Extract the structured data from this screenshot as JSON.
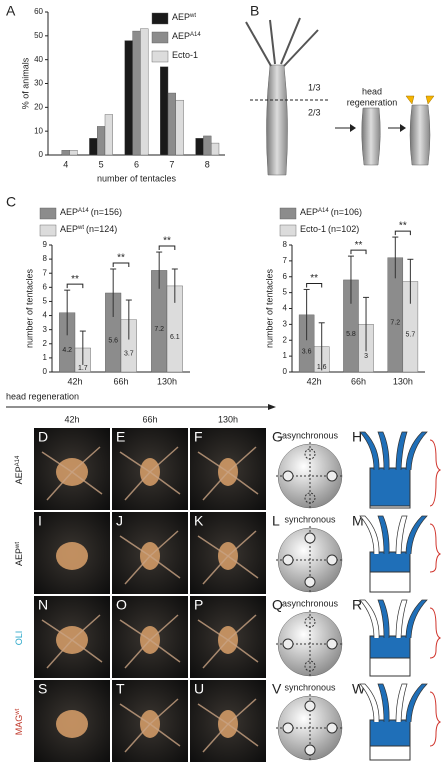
{
  "panel_labels": [
    "A",
    "B",
    "C"
  ],
  "chart_data": [
    {
      "type": "bar",
      "ylabel": "% of animals",
      "xlabel": "number of tentacles",
      "categories": [
        "4",
        "5",
        "6",
        "7",
        "8"
      ],
      "ylim": [
        0,
        60
      ],
      "yticks": [
        0,
        10,
        20,
        30,
        40,
        50,
        60
      ],
      "series": [
        {
          "name": "AEP",
          "name_sup": "wt",
          "color": "#1a1a1a",
          "values": [
            0,
            7,
            48,
            37,
            7
          ]
        },
        {
          "name": "AEP",
          "name_sup": "A14",
          "color": "#8c8c8c",
          "values": [
            2,
            12,
            52,
            26,
            8
          ]
        },
        {
          "name": "Ecto-1",
          "color": "#dcdcdc",
          "values": [
            2,
            17,
            53,
            23,
            5
          ]
        }
      ]
    },
    {
      "type": "bar",
      "ylabel": "number of tentacles",
      "categories": [
        "42h",
        "66h",
        "130h"
      ],
      "ylim": [
        0,
        9
      ],
      "yticks": [
        0,
        1,
        2,
        3,
        4,
        5,
        6,
        7,
        8,
        9
      ],
      "significance": [
        "**",
        "**",
        "**"
      ],
      "series": [
        {
          "name": "AEP",
          "name_sup": "A14",
          "note": "(n=156)",
          "color": "#8c8c8c",
          "values": [
            4.2,
            5.6,
            7.2
          ],
          "errors": [
            1.6,
            1.7,
            1.3
          ]
        },
        {
          "name": "AEP",
          "name_sup": "wt",
          "note": "(n=124)",
          "color": "#dcdcdc",
          "values": [
            1.7,
            3.7,
            6.1
          ],
          "errors": [
            1.2,
            1.4,
            1.2
          ]
        }
      ]
    },
    {
      "type": "bar",
      "ylabel": "number of tentacles",
      "categories": [
        "42h",
        "66h",
        "130h"
      ],
      "ylim": [
        0,
        8
      ],
      "yticks": [
        0,
        1,
        2,
        3,
        4,
        5,
        6,
        7,
        8
      ],
      "significance": [
        "**",
        "**",
        "**"
      ],
      "series": [
        {
          "name": "AEP",
          "name_sup": "A14",
          "note": "(n=106)",
          "color": "#8c8c8c",
          "values": [
            3.6,
            5.8,
            7.2
          ],
          "errors": [
            1.6,
            1.5,
            1.3
          ]
        },
        {
          "name": "Ecto-1",
          "note": "(n=102)",
          "color": "#dcdcdc",
          "values": [
            1.6,
            3.0,
            5.7
          ],
          "errors": [
            1.5,
            1.7,
            1.4
          ]
        }
      ]
    }
  ],
  "diagram_b": {
    "fractions": [
      "1/3",
      "2/3"
    ],
    "caption": [
      "head",
      "regeneration"
    ]
  },
  "timeline": {
    "title": "head regeneration",
    "times": [
      "42h",
      "66h",
      "130h"
    ]
  },
  "rows": [
    {
      "label": "AEP",
      "label_sup": "A14",
      "color": "#222",
      "panels": [
        "D",
        "E",
        "F",
        "G",
        "H"
      ],
      "pattern": "asynchronous"
    },
    {
      "label": "AEP",
      "label_sup": "wt",
      "color": "#222",
      "panels": [
        "I",
        "J",
        "K",
        "L",
        "M"
      ],
      "pattern": "synchronous"
    },
    {
      "label": "OLI",
      "color": "#2aa7c9",
      "panels": [
        "N",
        "O",
        "P",
        "Q",
        "R"
      ],
      "pattern": "asynchronous"
    },
    {
      "label": "MAG",
      "label_sup": "wt",
      "color": "#c0392b",
      "panels": [
        "S",
        "T",
        "U",
        "V",
        "W"
      ],
      "pattern": "synchronous"
    }
  ]
}
